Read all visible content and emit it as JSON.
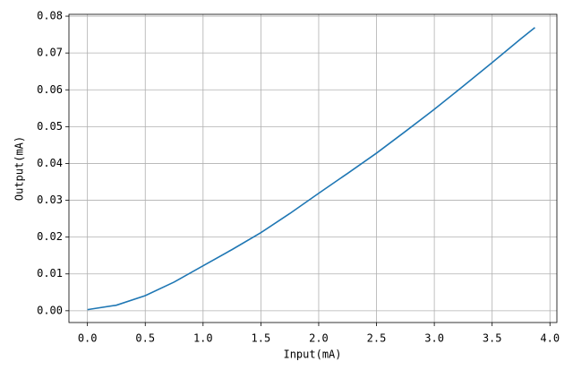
{
  "chart_data": {
    "type": "line",
    "x_label": "Input(mA)",
    "y_label": "Output(mA)",
    "x": [
      0,
      0.25,
      0.5,
      0.75,
      1.0,
      1.25,
      1.5,
      1.75,
      2.0,
      2.25,
      2.5,
      2.75,
      3.0,
      3.25,
      3.5,
      3.75,
      3.87
    ],
    "series": [
      {
        "color": "#1f77b4",
        "values": [
          0.0003,
          0.0015,
          0.0041,
          0.0078,
          0.0122,
          0.0166,
          0.0212,
          0.0264,
          0.0319,
          0.0373,
          0.0428,
          0.0487,
          0.0547,
          0.061,
          0.0674,
          0.0739,
          0.0769
        ]
      }
    ],
    "xlim": [
      -0.16,
      4.06
    ],
    "ylim": [
      -0.0032,
      0.0805
    ],
    "xticks": [
      {
        "value": 0,
        "label": "0.0"
      },
      {
        "value": 0.5,
        "label": "0.5"
      },
      {
        "value": 1,
        "label": "1.0"
      },
      {
        "value": 1.5,
        "label": "1.5"
      },
      {
        "value": 2,
        "label": "2.0"
      },
      {
        "value": 2.5,
        "label": "2.5"
      },
      {
        "value": 3,
        "label": "3.0"
      },
      {
        "value": 3.5,
        "label": "3.5"
      },
      {
        "value": 4,
        "label": "4.0"
      }
    ],
    "yticks": [
      {
        "value": 0,
        "label": "0.00"
      },
      {
        "value": 0.01,
        "label": "0.01"
      },
      {
        "value": 0.02,
        "label": "0.02"
      },
      {
        "value": 0.03,
        "label": "0.03"
      },
      {
        "value": 0.04,
        "label": "0.04"
      },
      {
        "value": 0.05,
        "label": "0.05"
      },
      {
        "value": 0.06,
        "label": "0.06"
      },
      {
        "value": 0.07,
        "label": "0.07"
      },
      {
        "value": 0.08,
        "label": "0.08"
      }
    ],
    "grid": true
  }
}
